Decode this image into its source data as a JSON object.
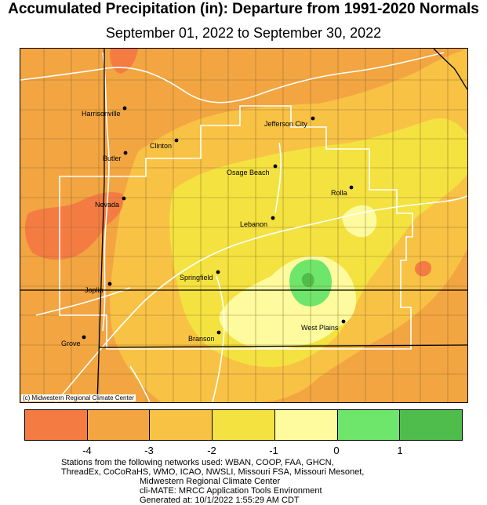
{
  "title": "Accumulated Precipitation (in): Departure from 1991-2020 Normals",
  "subtitle": "September 01, 2022 to September 30, 2022",
  "credit": "(c) Midwestern Regional Climate Center",
  "colors": {
    "deep_orange": "#f47c42",
    "orange": "#f2a541",
    "light_orange": "#f8c245",
    "yellow": "#f4e240",
    "pale_yellow": "#fdfb9e",
    "light_green": "#6ee56b",
    "green": "#4ebd4c",
    "county_line": "#8a6a32",
    "road": "#ffffff",
    "state_line": "#000000"
  },
  "cities": [
    {
      "name": "Harrisonville"
    },
    {
      "name": "Jefferson City"
    },
    {
      "name": "Clinton"
    },
    {
      "name": "Butler"
    },
    {
      "name": "Osage Beach"
    },
    {
      "name": "Rolla"
    },
    {
      "name": "Nevada"
    },
    {
      "name": "Lebanon"
    },
    {
      "name": "Springfield"
    },
    {
      "name": "Joplin"
    },
    {
      "name": "West Plains"
    },
    {
      "name": "Branson"
    },
    {
      "name": "Grove"
    }
  ],
  "legend": {
    "swatches": [
      {
        "range": "< -4",
        "color": "#f47c42"
      },
      {
        "range": "-4 to -3",
        "color": "#f2a541"
      },
      {
        "range": "-3 to -2",
        "color": "#f8c245"
      },
      {
        "range": "-2 to -1",
        "color": "#f4e240"
      },
      {
        "range": "-1 to 0",
        "color": "#fdfb9e"
      },
      {
        "range": "0 to 1",
        "color": "#6ee56b"
      },
      {
        "range": "> 1",
        "color": "#4ebd4c"
      }
    ],
    "ticks": [
      "-4",
      "-3",
      "-2",
      "-1",
      "0",
      "1"
    ]
  },
  "footer": {
    "line1": "Stations from the following networks used: WBAN, COOP, FAA, GHCN,",
    "line2": "ThreadEx, CoCoRaHS, WMO, ICAO, NWSLI, Missouri FSA, Missouri Mesonet,",
    "line3": "Midwestern Regional Climate Center",
    "line4": "cli-MATE: MRCC Application Tools Environment",
    "line5": "Generated at: 10/1/2022 1:55:29 AM CDT"
  }
}
